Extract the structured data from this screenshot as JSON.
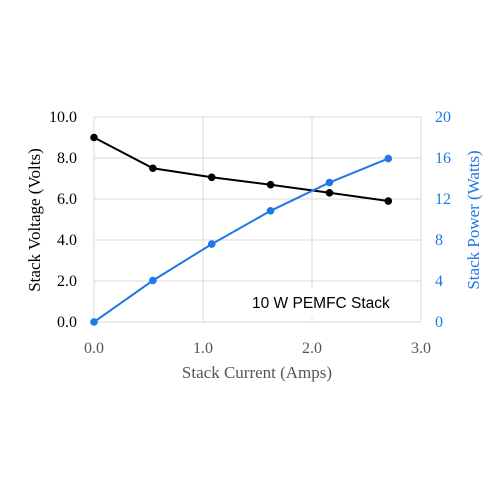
{
  "chart_data": {
    "type": "line",
    "annotation": "10 W PEMFC Stack",
    "xlabel": "Stack Current (Amps)",
    "ylabel": "Stack Voltage (Volts)",
    "y2label": "Stack Power (Watts)",
    "xlim": [
      0,
      3.0
    ],
    "ylim": [
      0,
      10.0
    ],
    "y2lim": [
      0,
      20
    ],
    "x_ticks": [
      "0.0",
      "1.0",
      "2.0",
      "3.0"
    ],
    "y_ticks": [
      "0.0",
      "2.0",
      "4.0",
      "6.0",
      "8.0",
      "10.0"
    ],
    "y2_ticks": [
      "0",
      "4",
      "8",
      "12",
      "16",
      "20"
    ],
    "grid": true,
    "series": [
      {
        "axis": "left",
        "color": "#000000",
        "points": [
          {
            "x": 0.0,
            "y": 9.0
          },
          {
            "x": 0.54,
            "y": 7.5
          },
          {
            "x": 1.08,
            "y": 7.06
          },
          {
            "x": 1.62,
            "y": 6.7
          },
          {
            "x": 2.16,
            "y": 6.3
          },
          {
            "x": 2.7,
            "y": 5.9
          }
        ]
      },
      {
        "axis": "right",
        "color": "#1f77e8",
        "points": [
          {
            "x": 0.0,
            "y": 0.0
          },
          {
            "x": 0.54,
            "y": 4.05
          },
          {
            "x": 1.08,
            "y": 7.6
          },
          {
            "x": 1.62,
            "y": 10.85
          },
          {
            "x": 2.16,
            "y": 13.6
          },
          {
            "x": 2.7,
            "y": 15.95
          }
        ]
      }
    ]
  }
}
